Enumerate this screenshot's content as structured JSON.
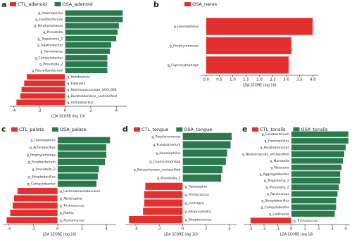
{
  "chart_data": [
    {
      "type": "diverging-bar",
      "panel": "a",
      "xlabel": "LDA SCORE (log 10)",
      "xlim": [
        -4.3,
        4.8
      ],
      "xticks": [
        -4,
        -2,
        0,
        2,
        4
      ],
      "categories": [
        "g_Haemophilus",
        "g_Fusobacterium",
        "g_Porphyromonas",
        "g_Prevotella",
        "g_Treponema_2",
        "g_Agathobacter",
        "g_Parvimonas",
        "g_Campylobacter",
        "g_Prevotella_2",
        "g_Faecalibacterium",
        "g_Romboutsia",
        "g_Eikenella",
        "g_Ruminococcaceae_UCG_005",
        "g_Burkholderiales_unclassified",
        "g_Actinobacillus"
      ],
      "series": [
        {
          "name": "CTL_adenoid",
          "color": "#e3302e",
          "values": [
            null,
            null,
            null,
            null,
            null,
            null,
            null,
            null,
            null,
            null,
            -3.0,
            -3.2,
            -3.4,
            -3.5,
            -3.8
          ]
        },
        {
          "name": "OSA_adenoid",
          "color": "#2a7a4e",
          "values": [
            4.5,
            4.5,
            4.2,
            4.1,
            4.0,
            3.6,
            3.5,
            3.3,
            3.3,
            3.3,
            null,
            null,
            null,
            null,
            null
          ]
        }
      ]
    },
    {
      "type": "diverging-bar",
      "panel": "b",
      "xlabel": "LDA SCORE (log 10)",
      "xlim": [
        -0.2,
        4.2
      ],
      "xticks": [
        {
          "value": 0,
          "label": "0.0"
        },
        {
          "value": 0.5,
          "label": "0.5"
        },
        {
          "value": 1,
          "label": "1.0"
        },
        {
          "value": 1.5,
          "label": "1.5"
        },
        {
          "value": 2,
          "label": "2.0"
        },
        {
          "value": 2.5,
          "label": "2.5"
        },
        {
          "value": 3,
          "label": "3.0"
        },
        {
          "value": 3.5,
          "label": "3.5"
        },
        {
          "value": 4,
          "label": "4.0"
        }
      ],
      "categories": [
        "g_Haemophilus",
        "g_Porphyromonas",
        "g_Capnocytophaga"
      ],
      "series": [
        {
          "name": "OSA_nares",
          "color": "#e3302e",
          "values": [
            4.0,
            3.2,
            3.1
          ]
        }
      ]
    },
    {
      "type": "diverging-bar",
      "panel": "c",
      "xlabel": "LDA SCORE (log 10)",
      "xlim": [
        -4.5,
        4.8
      ],
      "xticks": [
        -4,
        -2,
        0,
        2,
        4
      ],
      "categories": [
        "g_Haemophilus",
        "g_Actinobacillus",
        "g_Porphyromonas",
        "g_Fusobacterium",
        "g_Prevotella_2",
        "g_Streptobacillus",
        "g_Campylobacter",
        "g_Lachnoanaerobaculum",
        "g_Abiotrophia",
        "g_Trichococcus",
        "g_Rothia",
        "g_Actinomyces"
      ],
      "series": [
        {
          "name": "CTL_palate",
          "color": "#e3302e",
          "values": [
            null,
            null,
            null,
            null,
            null,
            null,
            null,
            -3.3,
            -3.6,
            -3.7,
            -3.9,
            -4.2
          ]
        },
        {
          "name": "OSA_palate",
          "color": "#2a7a4e",
          "values": [
            4.3,
            4.0,
            4.0,
            3.9,
            3.4,
            3.3,
            3.2,
            null,
            null,
            null,
            null,
            null
          ]
        }
      ]
    },
    {
      "type": "diverging-bar",
      "panel": "d",
      "xlabel": "LDA SCORE (log 10)",
      "xlim": [
        -4.9,
        4.6
      ],
      "xticks": [
        -4,
        -2,
        0,
        2,
        4
      ],
      "categories": [
        "g_Porphyromonas",
        "g_Fusobacterium",
        "g_Haemophilus",
        "g_Capnocytophaga",
        "g_Neisseriaceae_unclassified",
        "g_Prevotella_2",
        "g_Abiotrophia",
        "g_Trichococcus",
        "g_Lautropia",
        "g_Alloprevotella",
        "g_Streptococcus"
      ],
      "series": [
        {
          "name": "CTL_tongue",
          "color": "#e3302e",
          "values": [
            null,
            null,
            null,
            null,
            null,
            null,
            -3.2,
            -3.3,
            -3.3,
            -3.4,
            -4.6
          ]
        },
        {
          "name": "OSA_tongue",
          "color": "#2a7a4e",
          "values": [
            4.2,
            4.1,
            3.8,
            3.7,
            3.4,
            3.3,
            null,
            null,
            null,
            null,
            null
          ]
        }
      ]
    },
    {
      "type": "diverging-bar",
      "panel": "e",
      "xlabel": "LDA SCORE (log 10)",
      "xlim": [
        -3.5,
        4.3
      ],
      "xticks": [
        -3,
        -2,
        -1,
        0,
        1,
        2,
        3,
        4
      ],
      "categories": [
        "g_Fusobacterium",
        "g_Haemophilus",
        "g_Porphyromonas",
        "g_Neisseriaceae_unclassified",
        "g_Moraxella",
        "g_Neisseria",
        "g_Aggregatibacter",
        "g_Treponema_2",
        "g_Prevotella_2",
        "g_Parvimonas",
        "g_Streptobacillus",
        "g_Campylobacter",
        "g_Collinsella",
        "g_Trichococcus"
      ],
      "series": [
        {
          "name": "CTL_tonsils",
          "color": "#e3302e",
          "values": [
            null,
            null,
            null,
            null,
            null,
            null,
            null,
            null,
            null,
            null,
            null,
            null,
            null,
            -3.0
          ]
        },
        {
          "name": "OSA_tonsils",
          "color": "#2a7a4e",
          "values": [
            4.2,
            4.2,
            4.0,
            3.9,
            3.8,
            3.7,
            3.6,
            3.6,
            3.5,
            3.4,
            3.3,
            3.3,
            3.2,
            null
          ]
        }
      ]
    }
  ]
}
